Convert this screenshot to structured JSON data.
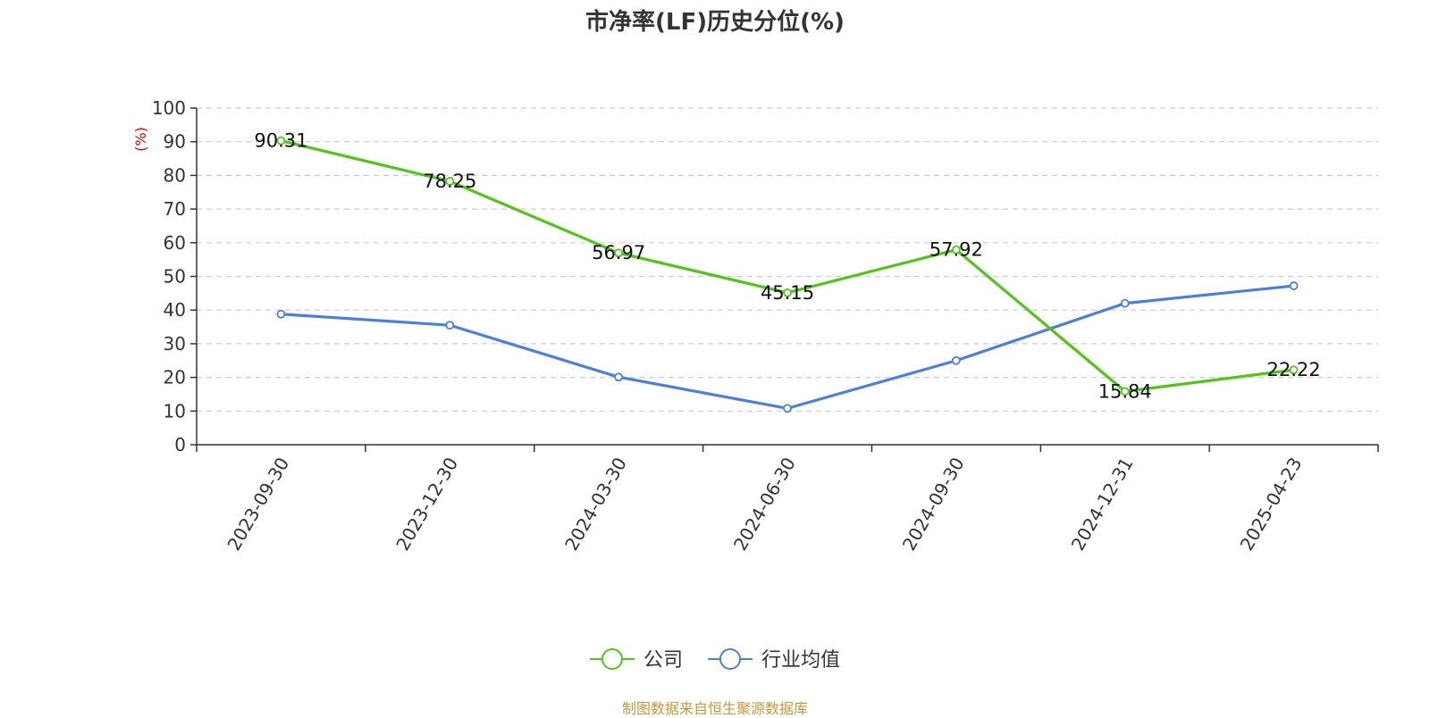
{
  "chart_data": {
    "type": "line",
    "title": "市净率(LF)历史分位(%)",
    "ylabel": "(%)",
    "xlabel": "",
    "ylim": [
      0,
      100
    ],
    "yticks": [
      0,
      10,
      20,
      30,
      40,
      50,
      60,
      70,
      80,
      90,
      100
    ],
    "grid": true,
    "legend_position": "bottom",
    "categories": [
      "2023-09-30",
      "2023-12-30",
      "2024-03-30",
      "2024-06-30",
      "2024-09-30",
      "2024-12-31",
      "2025-04-23"
    ],
    "series": [
      {
        "name": "公司",
        "color": "#52c41a",
        "values": [
          90.31,
          78.25,
          56.97,
          45.15,
          57.92,
          15.84,
          22.22
        ],
        "labels": [
          "90.31",
          "78.25",
          "56.97",
          "45.15",
          "57.92",
          "15.84",
          "22.22"
        ]
      },
      {
        "name": "行业均值",
        "color": "#4a7fdb",
        "values": [
          38.8,
          35.5,
          20.1,
          10.8,
          25.0,
          42.0,
          47.2
        ]
      }
    ],
    "source": "制图数据来自恒生聚源数据库"
  }
}
